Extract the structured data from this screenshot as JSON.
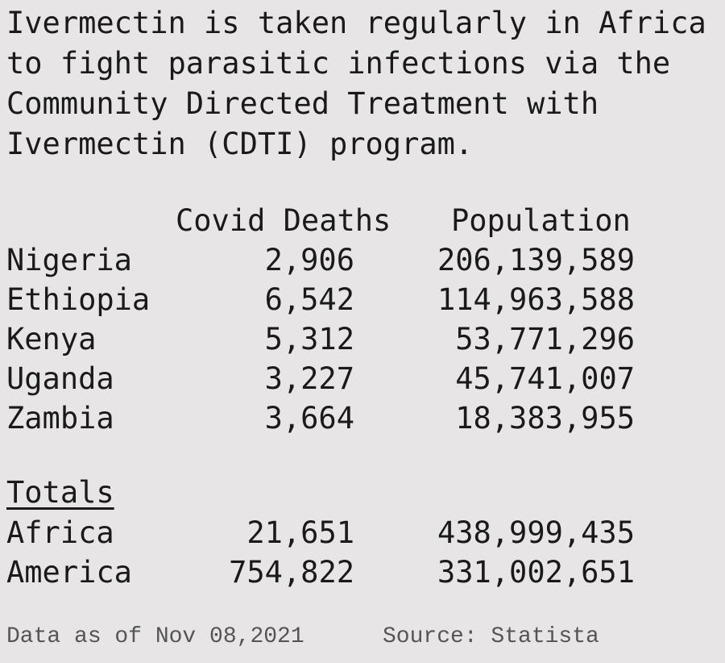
{
  "intro": {
    "lines": [
      "Ivermectin is taken regularly in Africa",
      "to fight parasitic infections via the",
      "Community Directed Treatment with",
      "Ivermectin (CDTI) program."
    ]
  },
  "table": {
    "headers": [
      "Covid Deaths",
      "Population"
    ],
    "rows": [
      [
        "Nigeria",
        "2,906",
        "206,139,589"
      ],
      [
        "Ethiopia",
        "6,542",
        "114,963,588"
      ],
      [
        "Kenya",
        "5,312",
        "53,771,296"
      ],
      [
        "Uganda",
        "3,227",
        "45,741,007"
      ],
      [
        "Zambia",
        "3,664",
        "18,383,955"
      ]
    ]
  },
  "totals": {
    "title": "Totals",
    "rows": [
      [
        "Africa",
        "21,651",
        "438,999,435"
      ],
      [
        "America",
        "754,822",
        "331,002,651"
      ]
    ]
  },
  "footer": {
    "date": "Data as of Nov 08,2021",
    "source": "Source: Statista"
  }
}
